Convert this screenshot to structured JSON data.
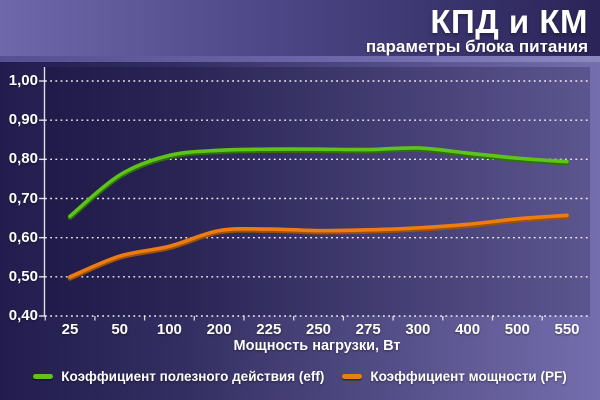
{
  "header": {
    "title": "КПД и КМ",
    "subtitle": "параметры блока питания"
  },
  "chart_data": {
    "type": "line",
    "title": "КПД и КМ",
    "subtitle": "параметры блока питания",
    "categories": [
      25,
      50,
      100,
      200,
      225,
      250,
      275,
      300,
      400,
      500,
      550
    ],
    "x_tick_labels": [
      "25",
      "50",
      "100",
      "200",
      "225",
      "250",
      "275",
      "300",
      "400",
      "500",
      "550"
    ],
    "xlabel": "Мощность нагрузки, Вт",
    "ylabel": "",
    "ylim": [
      0.4,
      1.0
    ],
    "y_ticks": [
      1.0,
      0.9,
      0.8,
      0.7,
      0.6,
      0.5,
      0.4
    ],
    "y_tick_labels": [
      "1,00",
      "0,90",
      "0,80",
      "0,70",
      "0,60",
      "0,50",
      "0,40"
    ],
    "grid": "horizontal-dotted-white",
    "legend_position": "bottom",
    "series": [
      {
        "id": "eff",
        "name": "Коэффициент полезного действия (eff)",
        "color": "#5ec41a",
        "shadow_color": "#2f7208",
        "values": [
          0.655,
          0.76,
          0.81,
          0.823,
          0.826,
          0.826,
          0.825,
          0.829,
          0.816,
          0.803,
          0.794
        ]
      },
      {
        "id": "pf",
        "name": "Коэффициент мощности (PF)",
        "color": "#ed7d12",
        "shadow_color": "#9e5206",
        "values": [
          0.5,
          0.553,
          0.578,
          0.618,
          0.622,
          0.618,
          0.62,
          0.625,
          0.634,
          0.648,
          0.657
        ]
      }
    ],
    "colors": {
      "background_left": "#221d4e",
      "background_right": "#756eae",
      "header_left": "#6f68aa",
      "header_right": "#2a2458",
      "text": "#ffffff"
    }
  }
}
